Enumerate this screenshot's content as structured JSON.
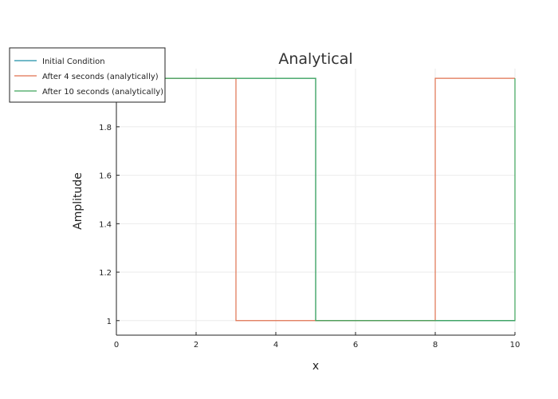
{
  "chart_data": {
    "type": "line",
    "title": "Analytical",
    "xlabel": "x",
    "ylabel": "Amplitude",
    "xlim": [
      0,
      10
    ],
    "ylim": [
      0.94,
      2.04
    ],
    "x_ticks": [
      0,
      2,
      4,
      6,
      8,
      10
    ],
    "y_ticks": [
      1,
      1.2,
      1.4,
      1.6,
      1.8
    ],
    "x_tick_labels": [
      "0",
      "2",
      "4",
      "6",
      "8",
      "10"
    ],
    "y_tick_labels": [
      "1",
      "1.2",
      "1.4",
      "1.6",
      "1.8"
    ],
    "grid": true,
    "legend_position": "top-left",
    "series": [
      {
        "name": "Initial Condition",
        "color": "#1f8fa8",
        "x": [
          0,
          5,
          5,
          10
        ],
        "y": [
          2,
          2,
          1,
          1
        ]
      },
      {
        "name": "After 4 seconds (analytically)",
        "color": "#e0714f",
        "x": [
          0,
          3,
          3,
          8,
          8,
          10
        ],
        "y": [
          2,
          2,
          1,
          1,
          2,
          2
        ]
      },
      {
        "name": "After 10 seconds (analytically)",
        "color": "#3ea45a",
        "x": [
          0,
          5,
          5,
          10,
          10
        ],
        "y": [
          2,
          2,
          1,
          1,
          2
        ]
      }
    ]
  }
}
